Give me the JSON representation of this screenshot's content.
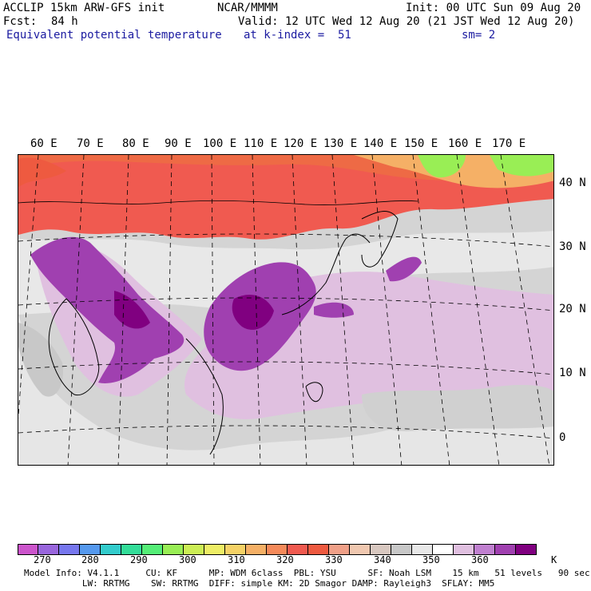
{
  "header": {
    "model_title": "ACCLIP 15km ARW-GFS init",
    "center": "NCAR/MMMM",
    "init": "Init: 00 UTC Sun 09 Aug 20",
    "fcst_label": "Fcst:",
    "fcst_value": "84 h",
    "valid": "Valid: 12 UTC Wed 12 Aug 20 (21 JST Wed 12 Aug 20)",
    "field_name": "Equivalent potential temperature",
    "level": "at k-index =  51",
    "smoothing": "sm= 2"
  },
  "map": {
    "lon_labels": [
      "60 E",
      "70 E",
      "80 E",
      "90 E",
      "100 E",
      "110 E",
      "120 E",
      "130 E",
      "140 E",
      "150 E",
      "160 E",
      "170 E"
    ],
    "lat_labels": [
      "40 N",
      "30 N",
      "20 N",
      "10 N",
      "0"
    ]
  },
  "colorbar": {
    "unit": "K",
    "ticks": [
      "270",
      "280",
      "290",
      "300",
      "310",
      "320",
      "330",
      "340",
      "350",
      "360"
    ],
    "colors": [
      "#cc55cc",
      "#9966dd",
      "#7777ee",
      "#5599ee",
      "#33cccc",
      "#33dd99",
      "#55ee77",
      "#99ee55",
      "#ccee55",
      "#eeee66",
      "#f5d266",
      "#f5b066",
      "#f58a5a",
      "#f05a50",
      "#ee5a40",
      "#f0a088",
      "#f0c8b0",
      "#d8c8c0",
      "#c8c8c8",
      "#e8e8e8",
      "#ffffff",
      "#e0c0e0",
      "#c080d0",
      "#a040b0",
      "#800080"
    ]
  },
  "footer": {
    "line1": "Model Info: V4.1.1     CU: KF      MP: WDM 6class  PBL: YSU      SF: Noah LSM    15 km   51 levels   90 sec",
    "line2": "           LW: RRTMG    SW: RRTMG  DIFF: simple KM: 2D Smagor DAMP: Rayleigh3  SFLAY: MM5"
  }
}
